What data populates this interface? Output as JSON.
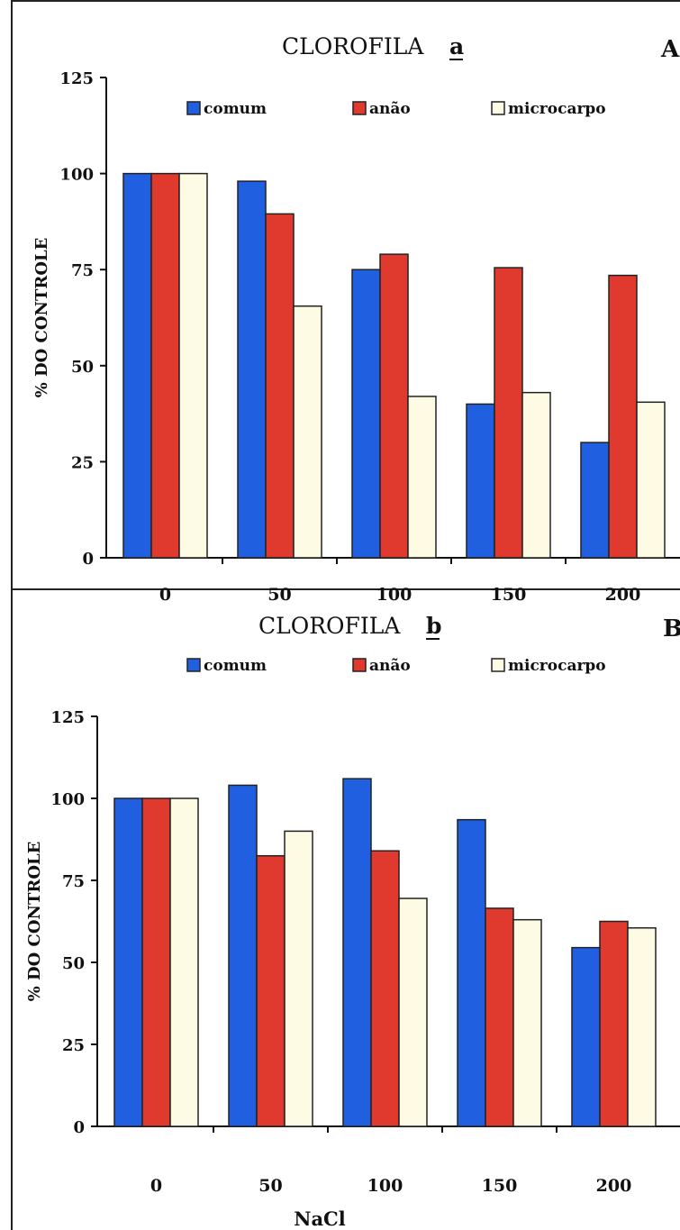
{
  "colors": {
    "comum": "#1f5fe0",
    "anao": "#e0392e",
    "microcarpo": "#fdfbe3",
    "outline": "#222222"
  },
  "chart_data": [
    {
      "type": "bar",
      "title": "CLOROFILA",
      "title_suffix": "a",
      "panel_label": "A",
      "ylabel": "% DO CONTROLE",
      "xlabel": "",
      "ylim": [
        0,
        125
      ],
      "yticks": [
        "0",
        "25",
        "50",
        "75",
        "100",
        "125"
      ],
      "categories": [
        "0",
        "50",
        "100",
        "150",
        "200"
      ],
      "legend_position": "top",
      "series": [
        {
          "name": "comum",
          "values": [
            100,
            98,
            75,
            40,
            30
          ]
        },
        {
          "name": "anão",
          "values": [
            100,
            89.5,
            79,
            75.5,
            73.5
          ]
        },
        {
          "name": "microcarpo",
          "values": [
            100,
            65.5,
            42,
            43,
            40.5
          ]
        }
      ]
    },
    {
      "type": "bar",
      "title": "CLOROFILA",
      "title_suffix": "b",
      "panel_label": "B",
      "ylabel": "% DO CONTROLE",
      "xlabel": "NaCl",
      "ylim": [
        0,
        125
      ],
      "yticks": [
        "0",
        "25",
        "50",
        "75",
        "100",
        "125"
      ],
      "categories": [
        "0",
        "50",
        "100",
        "150",
        "200"
      ],
      "legend_position": "top",
      "series": [
        {
          "name": "comum",
          "values": [
            100,
            104,
            106,
            93.5,
            54.5
          ]
        },
        {
          "name": "anão",
          "values": [
            100,
            82.5,
            84,
            66.5,
            62.5
          ]
        },
        {
          "name": "microcarpo",
          "values": [
            100,
            90,
            69.5,
            63,
            60.5
          ]
        }
      ]
    }
  ]
}
